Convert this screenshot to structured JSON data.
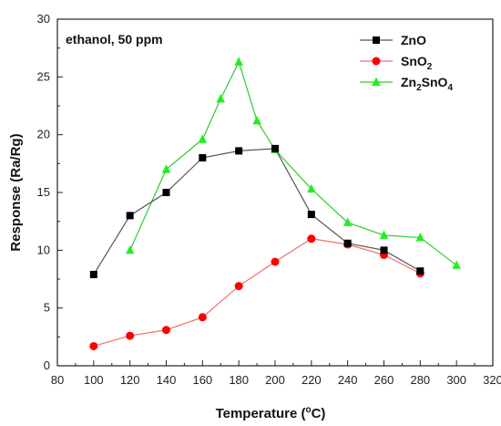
{
  "chart_data": {
    "type": "line",
    "annotation": "ethanol, 50 ppm",
    "xlabel": "Temperature (",
    "xlabel_degree": "o",
    "xlabel_unit": "C)",
    "ylabel": "Response (Ra/Rg)",
    "xlim": [
      80,
      320
    ],
    "ylim": [
      0,
      30
    ],
    "x_ticks": [
      80,
      100,
      120,
      140,
      160,
      180,
      200,
      220,
      240,
      260,
      280,
      300,
      320
    ],
    "x_tick_labels": [
      "80",
      "100",
      "120",
      "140",
      "160",
      "180",
      "200",
      "220",
      "240",
      "260",
      "280",
      "300",
      "320"
    ],
    "y_ticks": [
      0,
      5,
      10,
      15,
      20,
      25,
      30
    ],
    "y_tick_labels": [
      "0",
      "5",
      "10",
      "15",
      "20",
      "25",
      "30"
    ],
    "grid": false,
    "legend_position": "top-right",
    "series": [
      {
        "name": "ZnO",
        "legend_base": "ZnO",
        "legend_sub": "",
        "legend_tail": "",
        "legend_sub2": "",
        "marker": "square",
        "line_color": "#555555",
        "marker_color": "#000000",
        "x": [
          100,
          120,
          140,
          160,
          180,
          200,
          220,
          240,
          260,
          280
        ],
        "y": [
          7.9,
          13.0,
          15.0,
          18.0,
          18.6,
          18.8,
          13.1,
          10.6,
          10.0,
          8.2
        ]
      },
      {
        "name": "SnO2",
        "legend_base": "SnO",
        "legend_sub": "2",
        "legend_tail": "",
        "legend_sub2": "",
        "marker": "circle",
        "line_color": "#f07070",
        "marker_color": "#ff0000",
        "x": [
          100,
          120,
          140,
          160,
          180,
          200,
          220,
          240,
          260,
          280
        ],
        "y": [
          1.7,
          2.6,
          3.1,
          4.2,
          6.9,
          9.0,
          11.0,
          10.5,
          9.6,
          8.0
        ]
      },
      {
        "name": "Zn2SnO4",
        "legend_base": "Zn",
        "legend_sub": "2",
        "legend_tail": "SnO",
        "legend_sub2": "4",
        "marker": "triangle",
        "line_color": "#2ecc2e",
        "marker_color": "#22ee22",
        "x": [
          120,
          140,
          160,
          170,
          180,
          190,
          200,
          220,
          240,
          260,
          280,
          300
        ],
        "y": [
          10.0,
          17.0,
          19.6,
          23.1,
          26.3,
          21.2,
          18.7,
          15.3,
          12.4,
          11.3,
          11.1,
          8.7
        ]
      }
    ]
  }
}
